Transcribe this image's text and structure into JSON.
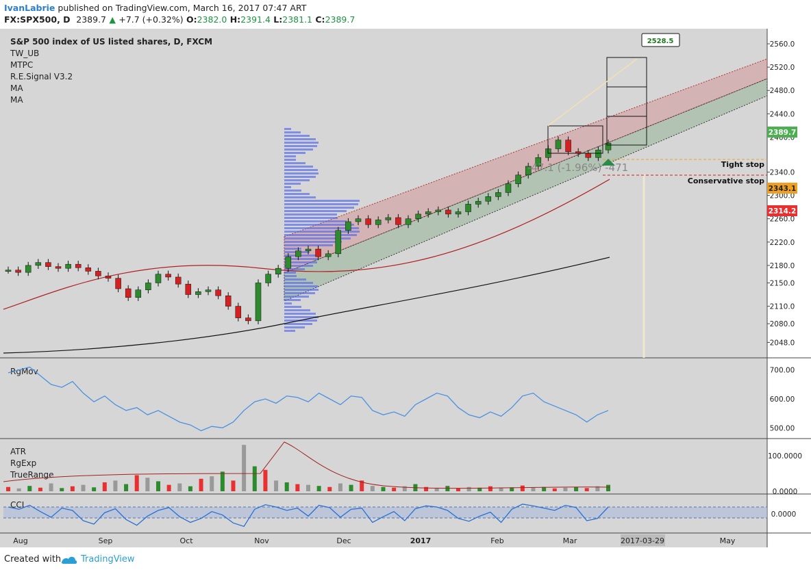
{
  "header": {
    "author": "IvanLabrie",
    "published": " published on TradingView.com, March 16, 2017 07:47 ART",
    "symbol": "FX:SPX500, D",
    "last": "2389.7",
    "change": "+7.7 (+0.32%)",
    "o_label": "O:",
    "o": "2382.0",
    "h_label": "H:",
    "h": "2391.4",
    "l_label": "L:",
    "l": "2381.1",
    "c_label": "C:",
    "c": "2389.7",
    "up_arrow": "▲"
  },
  "legend": {
    "title": "S&P 500 index of US listed shares, D, FXCM",
    "indicators": [
      "TW_UB",
      "MTPC",
      "R.E.Signal V3.2",
      "MA",
      "MA"
    ]
  },
  "annotations": {
    "target": "2528.5",
    "tight_stop": "Tight stop",
    "conservative_stop": "Conservative stop",
    "measure": "-47.1 (-1.96%) -471"
  },
  "price_labels": {
    "last": {
      "value": "2389.7",
      "color": "#4caf50"
    },
    "ma_fast": {
      "value": "2343.1",
      "color": "#f0a020"
    },
    "ma_red": {
      "value": "2314.2",
      "color": "#e83030"
    }
  },
  "panes": {
    "rgmov": "RgMov",
    "atr": [
      "ATR",
      "RgExp",
      "TrueRange"
    ],
    "cci": "CCI"
  },
  "x_axis": {
    "labels": [
      "Aug",
      "Sep",
      "Oct",
      "Nov",
      "Dec",
      "2017",
      "Feb",
      "Mar",
      "May"
    ],
    "highlight": "2017-03-29"
  },
  "chart_data": [
    {
      "type": "candlestick",
      "title": "S&P 500 index of US listed shares, D, FXCM",
      "ylim": [
        2025,
        2580
      ],
      "y_ticks": [
        "2560.0",
        "2520.0",
        "2480.0",
        "2440.0",
        "2400.0",
        "2340.0",
        "2300.0",
        "2260.0",
        "2220.0",
        "2180.0",
        "2150.0",
        "2110.0",
        "2080.0",
        "2048.0"
      ],
      "series": [
        {
          "name": "SPX500",
          "values": [
            2172,
            2168,
            2180,
            2185,
            2178,
            2175,
            2182,
            2176,
            2170,
            2162,
            2158,
            2140,
            2125,
            2138,
            2150,
            2165,
            2160,
            2148,
            2130,
            2135,
            2138,
            2128,
            2110,
            2090,
            2085,
            2150,
            2165,
            2175,
            2195,
            2205,
            2208,
            2195,
            2200,
            2240,
            2255,
            2260,
            2250,
            2258,
            2262,
            2250,
            2260,
            2268,
            2272,
            2275,
            2268,
            2272,
            2285,
            2290,
            2298,
            2305,
            2320,
            2335,
            2350,
            2365,
            2380,
            2395,
            2375,
            2372,
            2365,
            2378,
            2389.7
          ]
        }
      ],
      "grid": true,
      "last": 2389.7
    },
    {
      "type": "line",
      "title": "RgMov",
      "y_ticks": [
        "700.00",
        "600.00",
        "500.00"
      ],
      "ylim": [
        470,
        730
      ],
      "series": [
        {
          "name": "RgMov",
          "values": [
            690,
            700,
            710,
            680,
            650,
            640,
            660,
            620,
            590,
            610,
            580,
            560,
            570,
            545,
            560,
            540,
            520,
            510,
            490,
            505,
            500,
            520,
            560,
            590,
            600,
            585,
            610,
            605,
            590,
            620,
            600,
            580,
            610,
            605,
            560,
            545,
            555,
            540,
            580,
            600,
            620,
            610,
            570,
            545,
            535,
            555,
            540,
            570,
            610,
            620,
            590,
            575,
            560,
            545,
            520,
            545,
            560
          ]
        }
      ]
    },
    {
      "type": "bar",
      "title": "ATR",
      "y_ticks": [
        "100.0000",
        "0.0000"
      ],
      "ylim": [
        0,
        140
      ],
      "series": [
        {
          "name": "TrueRange",
          "values": [
            12,
            8,
            15,
            10,
            22,
            9,
            14,
            18,
            11,
            25,
            30,
            20,
            45,
            38,
            28,
            18,
            22,
            14,
            35,
            42,
            55,
            30,
            130,
            70,
            60,
            30,
            25,
            20,
            18,
            15,
            12,
            22,
            18,
            30,
            15,
            12,
            10,
            14,
            20,
            12,
            9,
            15,
            8,
            12,
            10,
            14,
            9,
            11,
            16,
            10,
            12,
            8,
            10,
            12,
            9,
            14,
            18
          ]
        }
      ]
    },
    {
      "type": "line",
      "title": "CCI",
      "y_ticks": [
        "0.0000"
      ],
      "ylim": [
        -300,
        300
      ],
      "series": [
        {
          "name": "CCI",
          "values": [
            120,
            80,
            150,
            40,
            -60,
            100,
            60,
            -120,
            -180,
            20,
            90,
            -100,
            -200,
            -40,
            60,
            110,
            -50,
            -150,
            -80,
            40,
            -20,
            -160,
            -220,
            80,
            160,
            120,
            60,
            100,
            -40,
            150,
            110,
            -60,
            80,
            100,
            -150,
            -50,
            40,
            -120,
            90,
            140,
            120,
            60,
            -80,
            -130,
            -40,
            30,
            -150,
            80,
            170,
            140,
            100,
            60,
            150,
            110,
            -120,
            -80,
            120
          ]
        }
      ]
    }
  ]
}
